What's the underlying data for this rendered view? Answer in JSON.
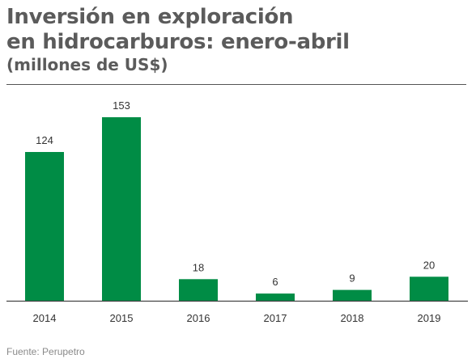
{
  "header": {
    "title_line1": "Inversión en exploración",
    "title_line2": "en hidrocarburos: enero-abril",
    "subtitle": "(millones de US$)"
  },
  "footer": {
    "source": "Fuente: Perupetro"
  },
  "colors": {
    "bar": "#008c45",
    "axis": "#444444",
    "text": "#5b5b5b"
  },
  "chart_data": {
    "type": "bar",
    "title": "Inversión en exploración en hidrocarburos: enero-abril",
    "subtitle": "(millones de US$)",
    "categories": [
      "2014",
      "2015",
      "2016",
      "2017",
      "2018",
      "2019"
    ],
    "values": [
      124,
      153,
      18,
      6,
      9,
      20
    ],
    "data_labels": [
      "124",
      "153",
      "18",
      "6",
      "9",
      "20"
    ],
    "xlabel": "",
    "ylabel": "",
    "ylim": [
      0,
      153
    ],
    "grid": false,
    "legend": "none"
  }
}
